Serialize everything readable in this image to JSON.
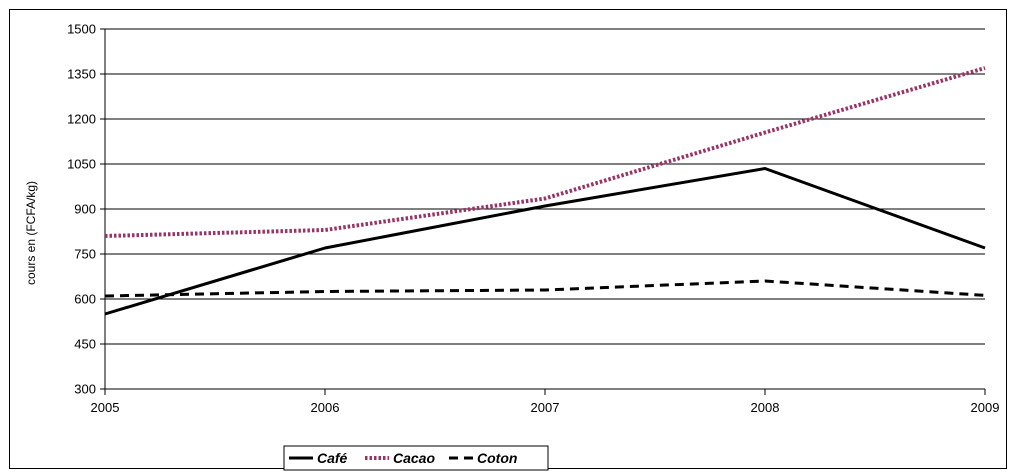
{
  "chart_data": {
    "type": "line",
    "title": "",
    "xlabel": "",
    "ylabel": "cours en (FCFA/kg)",
    "x": [
      "2005",
      "2006",
      "2007",
      "2008",
      "2009"
    ],
    "y_ticks": [
      300,
      450,
      600,
      750,
      900,
      1050,
      1200,
      1350,
      1500
    ],
    "ylim": [
      300,
      1500
    ],
    "grid": "horizontal",
    "legend_position": "bottom",
    "series": [
      {
        "name": "Café",
        "values": [
          550,
          770,
          910,
          1035,
          770
        ],
        "color": "#000000",
        "style": "solid"
      },
      {
        "name": "Cacao",
        "values": [
          810,
          830,
          935,
          1155,
          1370
        ],
        "color": "#993366",
        "style": "dotted"
      },
      {
        "name": "Coton",
        "values": [
          610,
          625,
          630,
          660,
          612
        ],
        "color": "#000000",
        "style": "dashed"
      }
    ]
  }
}
